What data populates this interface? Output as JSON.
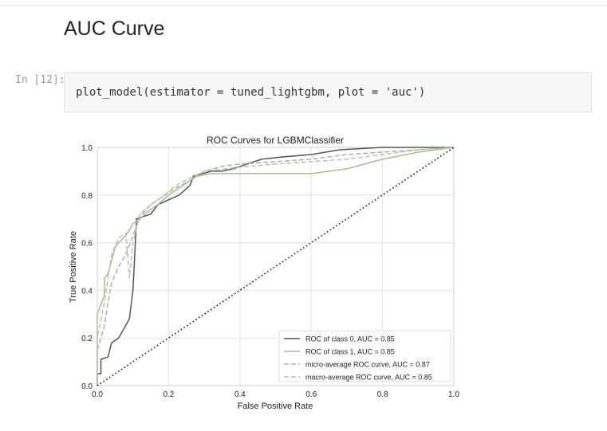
{
  "heading": "AUC Curve",
  "cell": {
    "prompt": "In [12]:",
    "code": "plot_model(estimator = tuned_lightgbm, plot = 'auc')"
  },
  "chart_data": {
    "type": "line",
    "title": "ROC Curves for LGBMClassifier",
    "xlabel": "False Positive Rate",
    "ylabel": "True Positive Rate",
    "xlim": [
      0,
      1
    ],
    "ylim": [
      0,
      1
    ],
    "xticks": [
      "0.0",
      "0.2",
      "0.4",
      "0.6",
      "0.8",
      "1.0"
    ],
    "yticks": [
      "0.0",
      "0.2",
      "0.4",
      "0.6",
      "0.8",
      "1.0"
    ],
    "grid": true,
    "legend_position": "bottom-right",
    "series": [
      {
        "name": "ROC of class 0, AUC = 0.85",
        "color": "#4b5a55",
        "dash": "solid",
        "points": [
          [
            0,
            0
          ],
          [
            0,
            0.05
          ],
          [
            0.01,
            0.05
          ],
          [
            0.01,
            0.11
          ],
          [
            0.03,
            0.12
          ],
          [
            0.04,
            0.18
          ],
          [
            0.06,
            0.2
          ],
          [
            0.09,
            0.28
          ],
          [
            0.1,
            0.4
          ],
          [
            0.11,
            0.7
          ],
          [
            0.13,
            0.71
          ],
          [
            0.15,
            0.72
          ],
          [
            0.17,
            0.76
          ],
          [
            0.2,
            0.78
          ],
          [
            0.23,
            0.8
          ],
          [
            0.26,
            0.84
          ],
          [
            0.27,
            0.88
          ],
          [
            0.32,
            0.9
          ],
          [
            0.35,
            0.9
          ],
          [
            0.38,
            0.91
          ],
          [
            0.42,
            0.93
          ],
          [
            0.46,
            0.95
          ],
          [
            0.52,
            0.96
          ],
          [
            0.6,
            0.97
          ],
          [
            0.68,
            0.99
          ],
          [
            0.8,
            1.0
          ],
          [
            1,
            1
          ]
        ]
      },
      {
        "name": "ROC of class 1, AUC = 0.85",
        "color": "#a3bf8f",
        "dash": "solid",
        "points": [
          [
            0,
            0
          ],
          [
            0,
            0.3
          ],
          [
            0.02,
            0.38
          ],
          [
            0.02,
            0.45
          ],
          [
            0.03,
            0.47
          ],
          [
            0.05,
            0.58
          ],
          [
            0.06,
            0.6
          ],
          [
            0.08,
            0.63
          ],
          [
            0.1,
            0.68
          ],
          [
            0.12,
            0.7
          ],
          [
            0.14,
            0.73
          ],
          [
            0.17,
            0.76
          ],
          [
            0.2,
            0.8
          ],
          [
            0.24,
            0.84
          ],
          [
            0.28,
            0.88
          ],
          [
            0.32,
            0.89
          ],
          [
            0.4,
            0.89
          ],
          [
            0.5,
            0.89
          ],
          [
            0.6,
            0.89
          ],
          [
            0.7,
            0.91
          ],
          [
            0.8,
            0.95
          ],
          [
            0.9,
            0.98
          ],
          [
            1,
            1
          ]
        ]
      },
      {
        "name": "micro-average ROC curve, AUC = 0.87",
        "color": "#a9b3a3",
        "dash": "dashed",
        "points": [
          [
            0,
            0
          ],
          [
            0,
            0.15
          ],
          [
            0.01,
            0.2
          ],
          [
            0.02,
            0.25
          ],
          [
            0.03,
            0.35
          ],
          [
            0.04,
            0.43
          ],
          [
            0.06,
            0.5
          ],
          [
            0.08,
            0.55
          ],
          [
            0.1,
            0.63
          ],
          [
            0.12,
            0.71
          ],
          [
            0.15,
            0.76
          ],
          [
            0.18,
            0.79
          ],
          [
            0.22,
            0.83
          ],
          [
            0.26,
            0.86
          ],
          [
            0.3,
            0.9
          ],
          [
            0.35,
            0.92
          ],
          [
            0.4,
            0.93
          ],
          [
            0.5,
            0.94
          ],
          [
            0.6,
            0.95
          ],
          [
            0.7,
            0.97
          ],
          [
            0.8,
            0.98
          ],
          [
            0.9,
            0.99
          ],
          [
            1,
            1
          ]
        ]
      },
      {
        "name": "macro-average ROC curve, AUC = 0.85",
        "color": "#b9c4a8",
        "dash": "dashed",
        "points": [
          [
            0,
            0
          ],
          [
            0,
            0.2
          ],
          [
            0.02,
            0.35
          ],
          [
            0.04,
            0.55
          ],
          [
            0.06,
            0.62
          ],
          [
            0.08,
            0.64
          ],
          [
            0.09,
            0.45
          ],
          [
            0.1,
            0.6
          ],
          [
            0.12,
            0.72
          ],
          [
            0.15,
            0.76
          ],
          [
            0.18,
            0.79
          ],
          [
            0.22,
            0.84
          ],
          [
            0.26,
            0.87
          ],
          [
            0.3,
            0.9
          ],
          [
            0.36,
            0.91
          ],
          [
            0.42,
            0.92
          ],
          [
            0.5,
            0.93
          ],
          [
            0.6,
            0.94
          ],
          [
            0.7,
            0.95
          ],
          [
            0.8,
            0.97
          ],
          [
            0.9,
            0.99
          ],
          [
            1,
            1
          ]
        ]
      },
      {
        "name": "",
        "color": "#111111",
        "dash": "dotted",
        "points": [
          [
            0,
            0
          ],
          [
            1,
            1
          ]
        ]
      }
    ]
  }
}
